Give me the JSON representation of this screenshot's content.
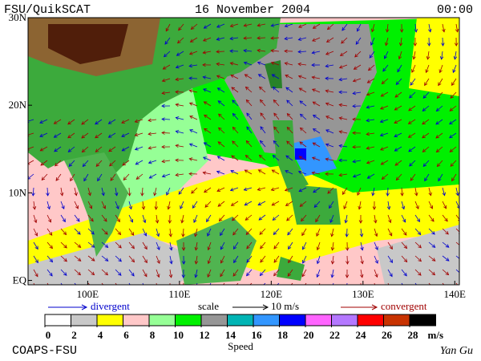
{
  "header": {
    "left": "FSU/QuikSCAT",
    "center": "16 November 2004",
    "right": "00:00"
  },
  "map": {
    "lonlim": [
      93.5,
      140.5
    ],
    "latlim": [
      -0.5,
      30
    ],
    "lon_ticks": [
      {
        "value": 100,
        "label": "100E"
      },
      {
        "value": 110,
        "label": "110E"
      },
      {
        "value": 120,
        "label": "120E"
      },
      {
        "value": 130,
        "label": "130E"
      },
      {
        "value": 140,
        "label": "140E"
      }
    ],
    "lat_ticks": [
      {
        "value": 30,
        "label": "30N"
      },
      {
        "value": 20,
        "label": "20N"
      },
      {
        "value": 10,
        "label": "10N"
      },
      {
        "value": 0,
        "label": "EQ"
      }
    ]
  },
  "legend": {
    "divergent": "divergent",
    "scale": "scale",
    "scale_value": "10 m/s",
    "convergent": "convergent",
    "divergent_color": "#0000cc",
    "convergent_color": "#a00000"
  },
  "colorbar": {
    "bounds": [
      0,
      2,
      4,
      6,
      8,
      10,
      12,
      14,
      16,
      18,
      20,
      22,
      24,
      26,
      28
    ],
    "colors": [
      "#ffffff",
      "#c8c8c8",
      "#ffff00",
      "#ffc8c8",
      "#96ff96",
      "#00f000",
      "#969696",
      "#00b4b4",
      "#3296ff",
      "#0000ff",
      "#ff64ff",
      "#b478ff",
      "#ff0000",
      "#c83200",
      "#000000"
    ],
    "unit": "m/s",
    "title": "Speed"
  },
  "footer": {
    "left": "COAPS-FSU",
    "right": "Yan Gu"
  }
}
